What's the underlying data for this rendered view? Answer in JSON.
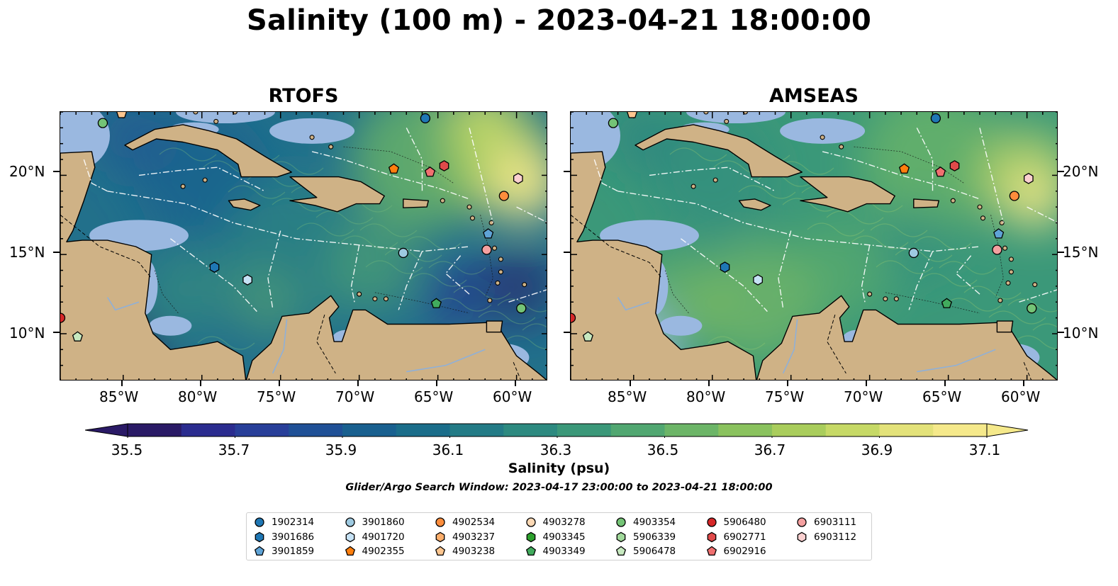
{
  "title": "Salinity (100 m) - 2023-04-21 18:00:00",
  "panels": [
    {
      "id": "rtofs",
      "title": "RTOFS"
    },
    {
      "id": "amseas",
      "title": "AMSEAS"
    }
  ],
  "axes": {
    "lon_ticks": [
      "85°W",
      "80°W",
      "75°W",
      "70°W",
      "65°W",
      "60°W"
    ],
    "lat_ticks": [
      "20°N",
      "15°N",
      "10°N"
    ],
    "lon_range": [
      -89,
      -58
    ],
    "lat_range": [
      7,
      24
    ]
  },
  "colorbar": {
    "label": "Salinity (psu)",
    "tick_labels": [
      "35.5",
      "35.7",
      "35.9",
      "36.1",
      "36.3",
      "36.5",
      "36.7",
      "36.9",
      "37.1"
    ],
    "range": [
      35.5,
      37.1
    ],
    "extend": "both",
    "colors": [
      "#2a1a66",
      "#2b2c8f",
      "#283f99",
      "#1f5096",
      "#19608f",
      "#1a6d8a",
      "#237b86",
      "#2d8a80",
      "#3b9879",
      "#51a771",
      "#6cb567",
      "#8ac25e",
      "#a9cd5c",
      "#c6d966",
      "#e3e27a",
      "#f5e98b"
    ],
    "under_color": "#2a1a66",
    "over_color": "#f5e98b"
  },
  "search_window": "Glider/Argo Search Window: 2023-04-17 23:00:00 to 2023-04-21 18:00:00",
  "legend": [
    {
      "id": "1902314",
      "marker": "circle",
      "color": "#1f77b4"
    },
    {
      "id": "3901686",
      "marker": "hexagon",
      "color": "#1f77b4"
    },
    {
      "id": "3901859",
      "marker": "pentagon",
      "color": "#5fa3d6"
    },
    {
      "id": "3901860",
      "marker": "circle",
      "color": "#9ecae1"
    },
    {
      "id": "4901720",
      "marker": "hexagon",
      "color": "#c6e2f5"
    },
    {
      "id": "4902355",
      "marker": "pentagon",
      "color": "#ff7f0e"
    },
    {
      "id": "4902534",
      "marker": "circle",
      "color": "#fd8d3c"
    },
    {
      "id": "4903237",
      "marker": "hexagon",
      "color": "#fdae6b"
    },
    {
      "id": "4903238",
      "marker": "pentagon",
      "color": "#fdc690"
    },
    {
      "id": "4903278",
      "marker": "circle",
      "color": "#fdd9b5"
    },
    {
      "id": "4903345",
      "marker": "hexagon",
      "color": "#2ca02c"
    },
    {
      "id": "4903349",
      "marker": "pentagon",
      "color": "#41ab5d"
    },
    {
      "id": "4903354",
      "marker": "circle",
      "color": "#74c476"
    },
    {
      "id": "5906339",
      "marker": "hexagon",
      "color": "#a1d99b"
    },
    {
      "id": "5906478",
      "marker": "pentagon",
      "color": "#c7e9c0"
    },
    {
      "id": "5906480",
      "marker": "circle",
      "color": "#d62728"
    },
    {
      "id": "6902771",
      "marker": "hexagon",
      "color": "#e04a4a"
    },
    {
      "id": "6902916",
      "marker": "pentagon",
      "color": "#f07070"
    },
    {
      "id": "6903111",
      "marker": "circle",
      "color": "#f4a0a0"
    },
    {
      "id": "6903112",
      "marker": "hexagon",
      "color": "#fbd0d0"
    }
  ],
  "floats_on_map": [
    {
      "id": "4903354",
      "lon": -86.3,
      "lat": 23.3
    },
    {
      "id": "4903238",
      "lon": -85.1,
      "lat": 23.9
    },
    {
      "id": "1902314",
      "lon": -65.8,
      "lat": 23.6
    },
    {
      "id": "4902355",
      "lon": -67.8,
      "lat": 20.4
    },
    {
      "id": "6902916",
      "lon": -65.5,
      "lat": 20.2
    },
    {
      "id": "6902771",
      "lon": -64.6,
      "lat": 20.6
    },
    {
      "id": "6903112",
      "lon": -59.9,
      "lat": 19.8
    },
    {
      "id": "4902534",
      "lon": -60.8,
      "lat": 18.7
    },
    {
      "id": "3901859",
      "lon": -61.8,
      "lat": 16.3
    },
    {
      "id": "6903111",
      "lon": -61.9,
      "lat": 15.3
    },
    {
      "id": "3901860",
      "lon": -67.2,
      "lat": 15.1
    },
    {
      "id": "3901686",
      "lon": -79.2,
      "lat": 14.2
    },
    {
      "id": "4901720",
      "lon": -77.1,
      "lat": 13.4
    },
    {
      "id": "4903349",
      "lon": -65.1,
      "lat": 11.9
    },
    {
      "id": "4903354",
      "lon": -59.7,
      "lat": 11.6
    },
    {
      "id": "5906480",
      "lon": -89.0,
      "lat": 11.0
    },
    {
      "id": "5906478",
      "lon": -87.9,
      "lat": 9.8
    }
  ]
}
